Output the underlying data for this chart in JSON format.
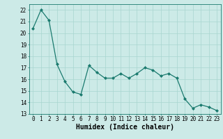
{
  "x": [
    0,
    1,
    2,
    3,
    4,
    5,
    6,
    7,
    8,
    9,
    10,
    11,
    12,
    13,
    14,
    15,
    16,
    17,
    18,
    19,
    20,
    21,
    22,
    23
  ],
  "y": [
    20.4,
    22.0,
    21.1,
    17.3,
    15.8,
    14.9,
    14.7,
    17.2,
    16.6,
    16.1,
    16.1,
    16.5,
    16.1,
    16.5,
    17.0,
    16.8,
    16.3,
    16.5,
    16.1,
    14.3,
    13.5,
    13.8,
    13.6,
    13.3
  ],
  "xlabel": "Humidex (Indice chaleur)",
  "line_color": "#1a7a6e",
  "marker_color": "#1a7a6e",
  "bg_color": "#cceae7",
  "grid_color": "#a8d5d0",
  "ylim": [
    13,
    22.5
  ],
  "xlim": [
    -0.5,
    23.5
  ],
  "yticks": [
    13,
    14,
    15,
    16,
    17,
    18,
    19,
    20,
    21,
    22
  ],
  "xticks": [
    0,
    1,
    2,
    3,
    4,
    5,
    6,
    7,
    8,
    9,
    10,
    11,
    12,
    13,
    14,
    15,
    16,
    17,
    18,
    19,
    20,
    21,
    22,
    23
  ],
  "tick_fontsize": 5.5,
  "xlabel_fontsize": 7
}
